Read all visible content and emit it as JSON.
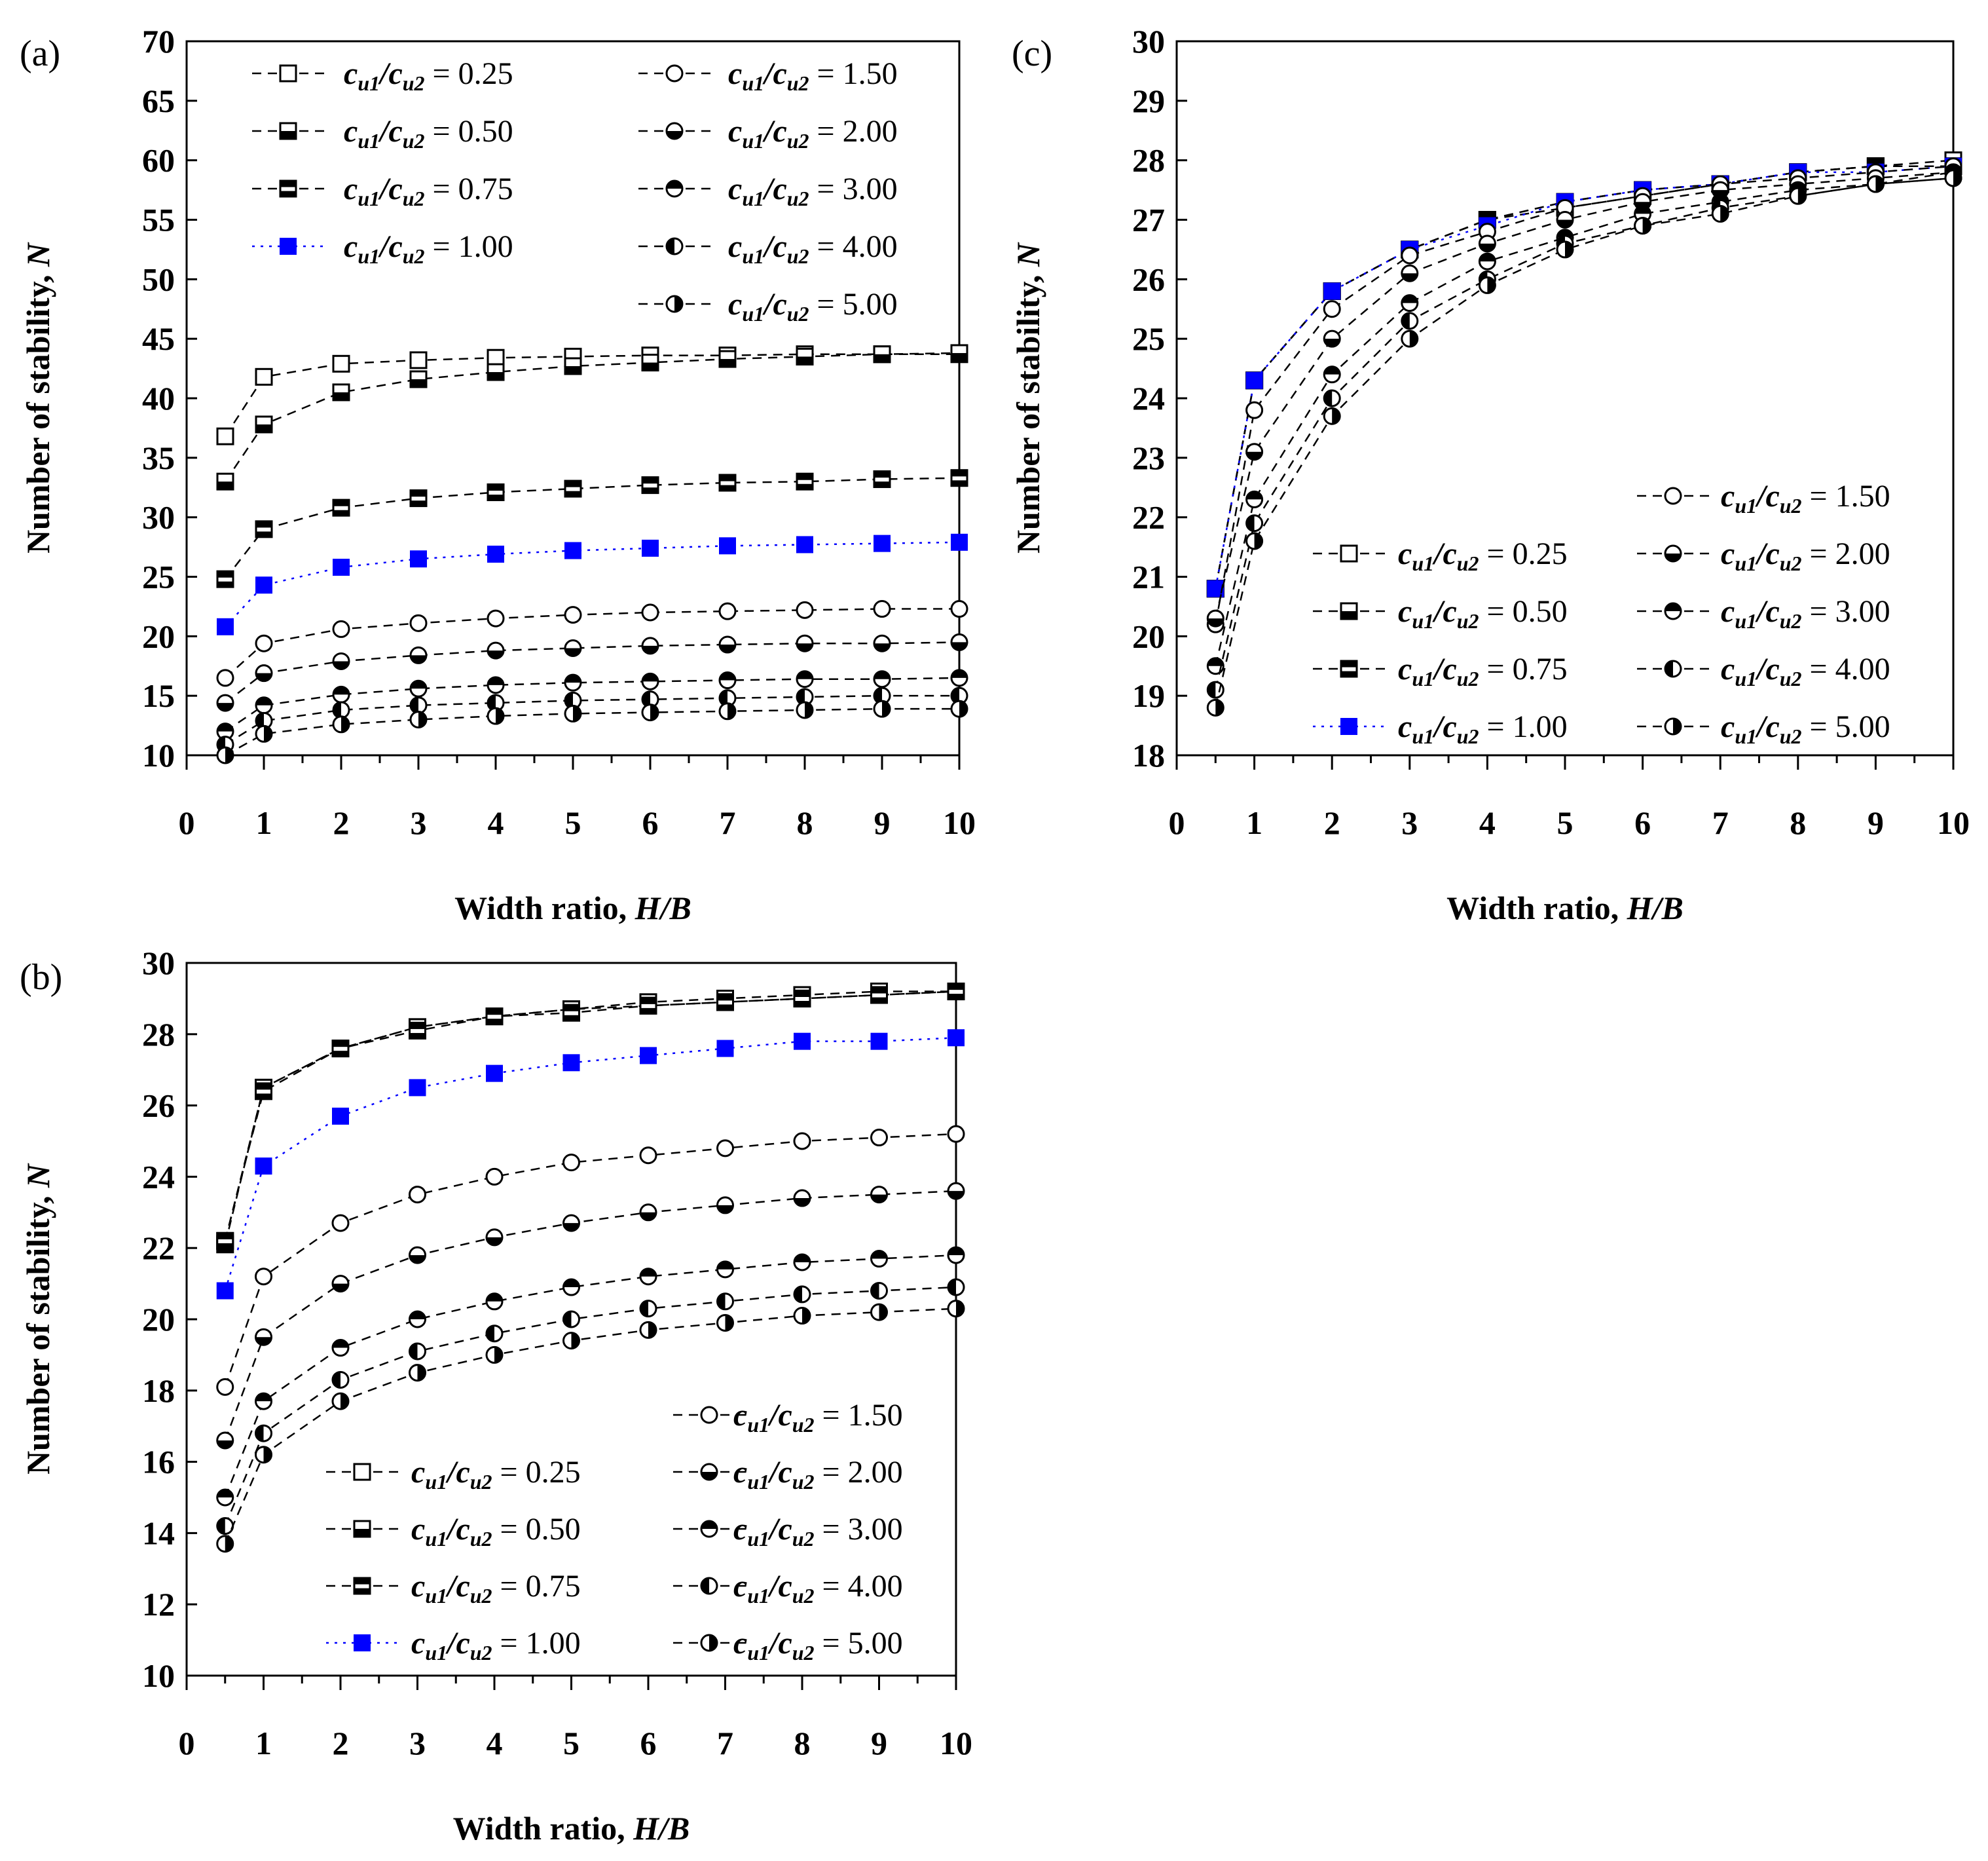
{
  "figure": {
    "title": ""
  },
  "styles": {
    "dashed": "#000000",
    "blue": "#0000ff"
  },
  "chart_data": [
    {
      "id": "a",
      "panel_label": "(a)",
      "type": "line",
      "xlabel_main": "Width ratio, ",
      "xlabel_var": "H/B",
      "ylabel_main": "Number of stability, ",
      "ylabel_var": "N",
      "xlim": [
        0,
        10
      ],
      "ylim": [
        10,
        70
      ],
      "xticks": [
        0,
        1,
        2,
        3,
        4,
        5,
        6,
        7,
        8,
        9,
        10
      ],
      "yticks": [
        10,
        15,
        20,
        25,
        30,
        35,
        40,
        45,
        50,
        55,
        60,
        65,
        70
      ],
      "x": [
        0.5,
        1,
        2,
        3,
        4,
        5,
        6,
        7,
        8,
        9,
        10
      ],
      "legend_location": "top",
      "series": [
        {
          "name": "= 0.25",
          "marker": "open",
          "style": "dashed",
          "values": [
            36.8,
            41.8,
            42.9,
            43.2,
            43.4,
            43.5,
            43.6,
            43.6,
            43.7,
            43.7,
            43.7
          ]
        },
        {
          "name": "= 0.50",
          "marker": "black-bottom",
          "style": "dashed",
          "values": [
            33.0,
            37.8,
            40.5,
            41.6,
            42.2,
            42.7,
            43.0,
            43.3,
            43.5,
            43.7,
            43.8
          ]
        },
        {
          "name": "= 0.75",
          "marker": "black-bottom-half",
          "style": "dashed",
          "values": [
            24.8,
            29.0,
            30.8,
            31.6,
            32.1,
            32.4,
            32.7,
            32.9,
            33.0,
            33.2,
            33.3
          ]
        },
        {
          "name": "= 1.00",
          "marker": "blue-filled",
          "style": "blue",
          "values": [
            20.8,
            24.3,
            25.8,
            26.5,
            26.9,
            27.2,
            27.4,
            27.6,
            27.7,
            27.8,
            27.9
          ]
        },
        {
          "name": "= 1.50",
          "marker": "open-circle",
          "style": "dashed",
          "values": [
            16.5,
            19.4,
            20.6,
            21.1,
            21.5,
            21.8,
            22.0,
            22.1,
            22.2,
            22.3,
            22.3
          ]
        },
        {
          "name": "= 2.00",
          "marker": "circle-bottom",
          "style": "dashed",
          "values": [
            14.4,
            16.9,
            17.9,
            18.4,
            18.8,
            19.0,
            19.2,
            19.3,
            19.4,
            19.4,
            19.5
          ]
        },
        {
          "name": "= 3.00",
          "marker": "circle-top",
          "style": "dashed",
          "values": [
            12.0,
            14.2,
            15.1,
            15.6,
            15.9,
            16.1,
            16.2,
            16.3,
            16.4,
            16.4,
            16.5
          ]
        },
        {
          "name": "= 4.00",
          "marker": "circle-left",
          "style": "dashed",
          "values": [
            10.9,
            12.9,
            13.8,
            14.2,
            14.4,
            14.6,
            14.7,
            14.8,
            14.9,
            15.0,
            15.0
          ]
        },
        {
          "name": "= 5.00",
          "marker": "circle-right",
          "style": "dashed",
          "values": [
            10.0,
            11.8,
            12.6,
            13.0,
            13.3,
            13.5,
            13.6,
            13.7,
            13.8,
            13.9,
            13.9
          ]
        }
      ]
    },
    {
      "id": "b",
      "panel_label": "(b)",
      "type": "line",
      "xlabel_main": "Width ratio, ",
      "xlabel_var": "H/B",
      "ylabel_main": "Number of stability, ",
      "ylabel_var": "N",
      "xlim": [
        0,
        10
      ],
      "ylim": [
        10,
        30
      ],
      "xticks": [
        0,
        1,
        2,
        3,
        4,
        5,
        6,
        7,
        8,
        9,
        10
      ],
      "yticks": [
        10,
        12,
        14,
        16,
        18,
        20,
        22,
        24,
        26,
        28,
        30
      ],
      "x": [
        0.5,
        1,
        2,
        3,
        4,
        5,
        6,
        7,
        8,
        9,
        10
      ],
      "legend_location": "bottom-right",
      "series": [
        {
          "name": "= 0.25",
          "marker": "open",
          "style": "dashed",
          "values": [
            22.2,
            26.5,
            27.6,
            28.2,
            28.5,
            28.7,
            28.9,
            29.0,
            29.1,
            29.2,
            29.2
          ]
        },
        {
          "name": "= 0.50",
          "marker": "black-bottom",
          "style": "dashed",
          "values": [
            22.1,
            26.5,
            27.6,
            28.2,
            28.5,
            28.7,
            28.8,
            28.9,
            29.0,
            29.1,
            29.2
          ]
        },
        {
          "name": "= 0.75",
          "marker": "black-bottom-half",
          "style": "dashed",
          "values": [
            22.2,
            26.4,
            27.6,
            28.1,
            28.5,
            28.6,
            28.8,
            28.9,
            29.0,
            29.1,
            29.2
          ]
        },
        {
          "name": "= 1.00",
          "marker": "blue-filled",
          "style": "blue",
          "values": [
            20.8,
            24.3,
            25.7,
            26.5,
            26.9,
            27.2,
            27.4,
            27.6,
            27.8,
            27.8,
            27.9
          ]
        },
        {
          "name": "= 1.50",
          "marker": "open-circle",
          "style": "dashed",
          "values": [
            18.1,
            21.2,
            22.7,
            23.5,
            24.0,
            24.4,
            24.6,
            24.8,
            25.0,
            25.1,
            25.2
          ]
        },
        {
          "name": "= 2.00",
          "marker": "circle-bottom",
          "style": "dashed",
          "values": [
            16.6,
            19.5,
            21.0,
            21.8,
            22.3,
            22.7,
            23.0,
            23.2,
            23.4,
            23.5,
            23.6
          ]
        },
        {
          "name": "= 3.00",
          "marker": "circle-top",
          "style": "dashed",
          "values": [
            15.0,
            17.7,
            19.2,
            20.0,
            20.5,
            20.9,
            21.2,
            21.4,
            21.6,
            21.7,
            21.8
          ]
        },
        {
          "name": "= 4.00",
          "marker": "circle-left",
          "style": "dashed",
          "values": [
            14.2,
            16.8,
            18.3,
            19.1,
            19.6,
            20.0,
            20.3,
            20.5,
            20.7,
            20.8,
            20.9
          ]
        },
        {
          "name": "= 5.00",
          "marker": "circle-right",
          "style": "dashed",
          "values": [
            13.7,
            16.2,
            17.7,
            18.5,
            19.0,
            19.4,
            19.7,
            19.9,
            20.1,
            20.2,
            20.3
          ]
        }
      ]
    },
    {
      "id": "c",
      "panel_label": "(c)",
      "type": "line",
      "xlabel_main": "Width ratio, ",
      "xlabel_var": "H/B",
      "ylabel_main": "Number of stability, ",
      "ylabel_var": "N",
      "xlim": [
        0,
        10
      ],
      "ylim": [
        18,
        30
      ],
      "xticks": [
        0,
        1,
        2,
        3,
        4,
        5,
        6,
        7,
        8,
        9,
        10
      ],
      "yticks": [
        18,
        19,
        20,
        21,
        22,
        23,
        24,
        25,
        26,
        27,
        28,
        29,
        30
      ],
      "x": [
        0.5,
        1,
        2,
        3,
        4,
        5,
        6,
        7,
        8,
        9,
        10
      ],
      "legend_location": "bottom-right",
      "series": [
        {
          "name": "= 0.25",
          "marker": "open",
          "style": "dashed",
          "values": [
            20.8,
            24.3,
            25.8,
            26.5,
            27.0,
            27.2,
            27.4,
            27.6,
            27.8,
            27.9,
            28.0
          ]
        },
        {
          "name": "= 0.50",
          "marker": "black-bottom",
          "style": "dashed",
          "values": [
            20.8,
            24.3,
            25.8,
            26.5,
            27.0,
            27.3,
            27.5,
            27.6,
            27.8,
            27.9,
            27.9
          ]
        },
        {
          "name": "= 0.75",
          "marker": "black-bottom-half",
          "style": "dashed",
          "values": [
            20.8,
            24.3,
            25.8,
            26.5,
            27.0,
            27.3,
            27.5,
            27.6,
            27.8,
            27.9,
            27.9
          ]
        },
        {
          "name": "= 1.00",
          "marker": "blue-filled",
          "style": "blue",
          "values": [
            20.8,
            24.3,
            25.8,
            26.5,
            26.9,
            27.3,
            27.5,
            27.6,
            27.8,
            27.8,
            27.9
          ]
        },
        {
          "name": "= 1.50",
          "marker": "open-circle",
          "style": "dashed",
          "values": [
            20.2,
            23.8,
            25.5,
            26.4,
            26.8,
            27.2,
            27.4,
            27.6,
            27.7,
            27.8,
            27.9
          ]
        },
        {
          "name": "= 2.00",
          "marker": "circle-bottom",
          "style": "dashed",
          "values": [
            20.3,
            23.1,
            25.0,
            26.1,
            26.6,
            27.0,
            27.3,
            27.5,
            27.6,
            27.7,
            27.8
          ]
        },
        {
          "name": "= 3.00",
          "marker": "circle-top",
          "style": "dashed",
          "values": [
            19.5,
            22.3,
            24.4,
            25.6,
            26.3,
            26.7,
            27.1,
            27.3,
            27.5,
            27.6,
            27.8
          ]
        },
        {
          "name": "= 4.00",
          "marker": "circle-left",
          "style": "dashed",
          "values": [
            19.1,
            21.9,
            24.0,
            25.3,
            26.0,
            26.6,
            26.9,
            27.2,
            27.4,
            27.6,
            27.7
          ]
        },
        {
          "name": "= 5.00",
          "marker": "circle-right",
          "style": "dashed",
          "values": [
            18.8,
            21.6,
            23.7,
            25.0,
            25.9,
            26.5,
            26.9,
            27.1,
            27.4,
            27.6,
            27.7
          ]
        }
      ]
    }
  ]
}
